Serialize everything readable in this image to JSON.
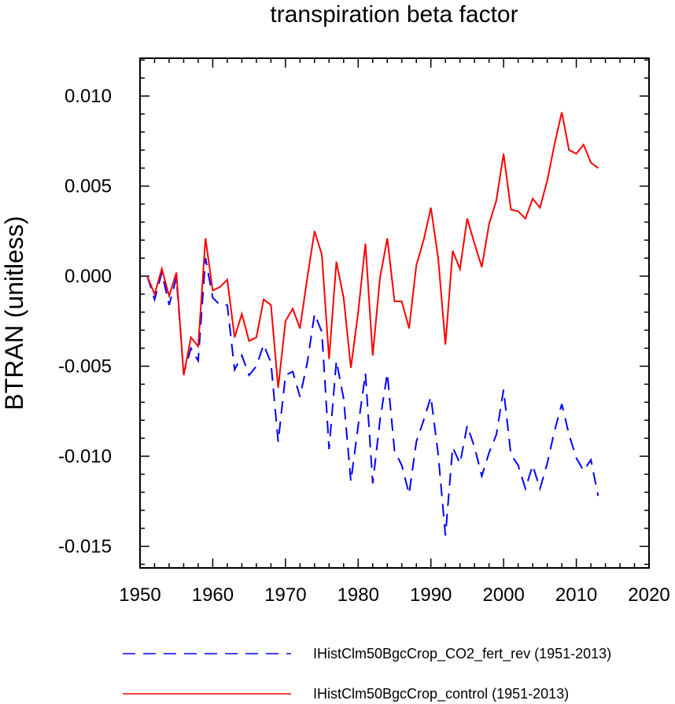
{
  "chart_data": {
    "type": "line",
    "title": "transpiration beta factor",
    "xlabel": "",
    "ylabel": "BTRAN  (unitless)",
    "xlim": [
      1950,
      2020
    ],
    "ylim": [
      -0.0162,
      0.0121
    ],
    "x_ticks": [
      1950,
      1960,
      1970,
      1980,
      1990,
      2000,
      2010,
      2020
    ],
    "x_tick_labels": [
      "1950",
      "1960",
      "1970",
      "1980",
      "1990",
      "2000",
      "2010",
      "2020"
    ],
    "y_ticks": [
      0.01,
      0.005,
      0.0,
      -0.005,
      -0.01,
      -0.015
    ],
    "y_tick_labels": [
      "0.010",
      "0.005",
      "0.000",
      "-0.005",
      "-0.010",
      "-0.015"
    ],
    "x": [
      1951,
      1952,
      1953,
      1954,
      1955,
      1956,
      1957,
      1958,
      1959,
      1960,
      1961,
      1962,
      1963,
      1964,
      1965,
      1966,
      1967,
      1968,
      1969,
      1970,
      1971,
      1972,
      1973,
      1974,
      1975,
      1976,
      1977,
      1978,
      1979,
      1980,
      1981,
      1982,
      1983,
      1984,
      1985,
      1986,
      1987,
      1988,
      1989,
      1990,
      1991,
      1992,
      1993,
      1994,
      1995,
      1996,
      1997,
      1998,
      1999,
      2000,
      2001,
      2002,
      2003,
      2004,
      2005,
      2006,
      2007,
      2008,
      2009,
      2010,
      2011,
      2012,
      2013
    ],
    "series": [
      {
        "name": "IHistClm50BgcCrop_CO2_fert_rev (1951-2013)",
        "color": "#0000ff",
        "style": "dashed",
        "values": [
          0.0,
          -0.0013,
          0.0002,
          -0.0016,
          -0.0001,
          -0.0054,
          -0.004,
          -0.0047,
          0.001,
          -0.0012,
          -0.0016,
          -0.0016,
          -0.0052,
          -0.0044,
          -0.0055,
          -0.005,
          -0.0038,
          -0.0048,
          -0.0092,
          -0.0055,
          -0.0053,
          -0.0067,
          -0.0048,
          -0.0021,
          -0.0031,
          -0.0096,
          -0.0047,
          -0.0068,
          -0.0114,
          -0.0083,
          -0.0054,
          -0.0115,
          -0.008,
          -0.0054,
          -0.0097,
          -0.0105,
          -0.0121,
          -0.0092,
          -0.008,
          -0.0067,
          -0.0099,
          -0.0144,
          -0.0095,
          -0.0104,
          -0.0083,
          -0.0095,
          -0.0111,
          -0.0098,
          -0.0088,
          -0.0063,
          -0.0099,
          -0.0105,
          -0.0118,
          -0.0105,
          -0.0118,
          -0.0104,
          -0.0086,
          -0.0071,
          -0.0088,
          -0.0101,
          -0.0108,
          -0.0102,
          -0.0122
        ]
      },
      {
        "name": "IHistClm50BgcCrop_control (1951-2013)",
        "color": "#ff0000",
        "style": "solid",
        "values": [
          0.0,
          -0.001,
          0.0004,
          -0.0011,
          0.0002,
          -0.0055,
          -0.0034,
          -0.0039,
          0.0021,
          -0.0008,
          -0.0006,
          -0.0002,
          -0.0034,
          -0.0021,
          -0.0036,
          -0.0034,
          -0.0013,
          -0.0016,
          -0.0062,
          -0.0025,
          -0.0018,
          -0.0029,
          -0.0001,
          0.0025,
          0.0012,
          -0.0046,
          0.0008,
          -0.0012,
          -0.0051,
          -0.002,
          0.0018,
          -0.0044,
          -0.0001,
          0.0021,
          -0.0014,
          -0.0014,
          -0.0029,
          0.0006,
          0.002,
          0.0038,
          0.001,
          -0.0038,
          0.0014,
          0.0004,
          0.0032,
          0.0018,
          0.0005,
          0.0029,
          0.0042,
          0.0068,
          0.0037,
          0.0036,
          0.0032,
          0.0043,
          0.0038,
          0.0053,
          0.0073,
          0.0091,
          0.007,
          0.0068,
          0.0073,
          0.0063,
          0.006
        ]
      }
    ],
    "legend_position": "bottom",
    "grid": false
  }
}
